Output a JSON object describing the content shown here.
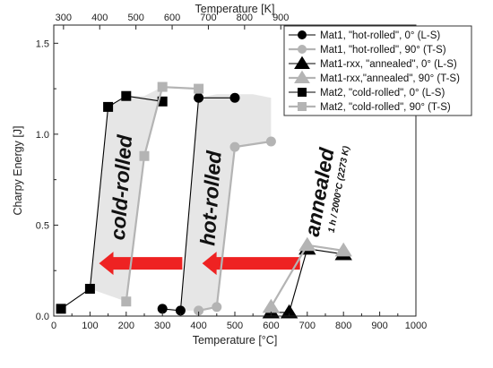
{
  "chart_data": {
    "type": "scatter",
    "x_axis": {
      "label": "Temperature [°C]",
      "range": [
        0,
        1000
      ],
      "ticks": [
        "0",
        "100",
        "200",
        "300",
        "400",
        "500",
        "600",
        "700",
        "800",
        "900",
        "1000"
      ]
    },
    "x2_axis": {
      "label": "Temperature [K]",
      "ticks": [
        "300",
        "400",
        "500",
        "600",
        "700",
        "800",
        "900"
      ],
      "tick_positions_celsius": [
        26.85,
        126.85,
        226.85,
        326.85,
        426.85,
        526.85,
        626.85
      ]
    },
    "y_axis": {
      "label": "Charpy Energy [J]",
      "range": [
        0,
        1.6
      ],
      "ticks": [
        "0.0",
        "0.5",
        "1.0",
        "1.5"
      ]
    },
    "series": [
      {
        "name": "Mat1, \"hot-rolled\", 0° (L-S)",
        "marker": "circle",
        "color": "#000000",
        "x": [
          300,
          350,
          400,
          500
        ],
        "y": [
          0.04,
          0.03,
          1.2,
          1.2
        ]
      },
      {
        "name": "Mat1, \"hot-rolled\", 90° (T-S)",
        "marker": "circle",
        "color": "#b4b4b4",
        "x": [
          400,
          450,
          500,
          600
        ],
        "y": [
          0.03,
          0.05,
          0.93,
          0.96
        ]
      },
      {
        "name": "Mat1-rxx, \"annealed\", 0° (L-S)",
        "marker": "triangle",
        "color": "#000000",
        "x": [
          600,
          650,
          700,
          800
        ],
        "y": [
          0.02,
          0.02,
          0.37,
          0.34
        ]
      },
      {
        "name": "Mat1-rxx,\"annealed\", 90° (T-S)",
        "marker": "triangle",
        "color": "#b4b4b4",
        "x": [
          600,
          700,
          800
        ],
        "y": [
          0.05,
          0.39,
          0.36
        ]
      },
      {
        "name": "Mat2, \"cold-rolled\", 0° (L-S)",
        "marker": "square",
        "color": "#000000",
        "x": [
          20,
          100,
          150,
          200,
          300
        ],
        "y": [
          0.04,
          0.15,
          1.15,
          1.21,
          1.18
        ]
      },
      {
        "name": "Mat2, \"cold-rolled\", 90° (T-S)",
        "marker": "square",
        "color": "#b4b4b4",
        "x": [
          200,
          250,
          300,
          400
        ],
        "y": [
          0.08,
          0.88,
          1.26,
          1.25
        ]
      }
    ],
    "annotations": {
      "cold_rolled": "cold-rolled",
      "hot_rolled": "hot-rolled",
      "annealed": "annealed",
      "annealed_condition": "1 h / 2000°C (2273 K)"
    },
    "colors": {
      "arrow": "#ee2222",
      "band": "#dedede",
      "series_gray": "#b4b4b4"
    },
    "legend_position": "top-right",
    "grid": false
  }
}
